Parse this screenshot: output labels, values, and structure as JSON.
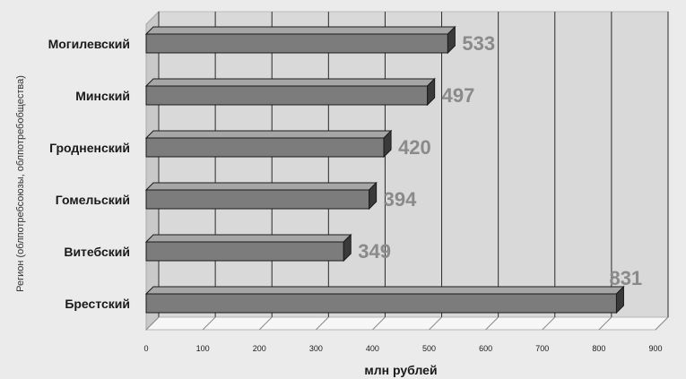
{
  "chart_data": {
    "type": "bar",
    "orientation": "horizontal",
    "categories": [
      "Могилевский",
      "Минский",
      "Гродненский",
      "Гомельский",
      "Витебский",
      "Брестский"
    ],
    "values": [
      533,
      497,
      420,
      394,
      349,
      831
    ],
    "xlabel": "млн рублей",
    "ylabel": "Регион (облпотребсоюзы, облпотребобщества)",
    "xlim": [
      0,
      900
    ],
    "xticks": [
      0,
      100,
      200,
      300,
      400,
      500,
      600,
      700,
      800,
      900
    ],
    "grid": true,
    "style": "3d",
    "colors": {
      "bar": "#7c7c7c",
      "bar_top": "#a6a6a6",
      "bar_side": "#3a3a3a",
      "value_label": "#8a8a8a",
      "plot_back": "#d9d9d9",
      "floor": "#f7f7f7",
      "page_bg": "#ebebeb"
    }
  }
}
